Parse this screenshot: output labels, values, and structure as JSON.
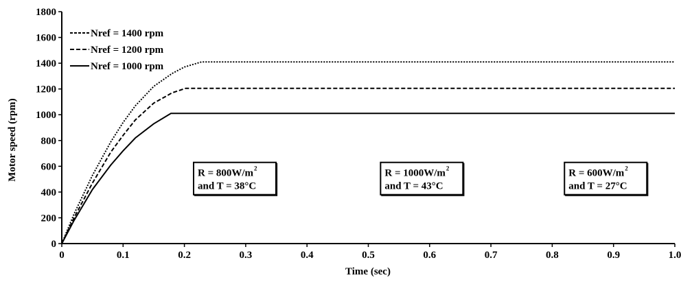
{
  "chart_data": {
    "type": "line",
    "title": "",
    "xlabel": "Time (sec)",
    "ylabel": "Motor speed (rpm)",
    "xlim": [
      0,
      1.0
    ],
    "ylim": [
      0,
      1800
    ],
    "xticks": [
      "0",
      "0.1",
      "0.2",
      "0.3",
      "0.4",
      "0.5",
      "0.6",
      "0.7",
      "0.8",
      "0.9",
      "1.0"
    ],
    "yticks": [
      "0",
      "200",
      "400",
      "600",
      "800",
      "1000",
      "1200",
      "1400",
      "1600",
      "1800"
    ],
    "grid": false,
    "legend_position": "top-left",
    "series": [
      {
        "name": "Nref = 1400 rpm",
        "style": "dotted",
        "x": [
          0,
          0.02,
          0.05,
          0.08,
          0.1,
          0.12,
          0.15,
          0.18,
          0.2,
          0.228,
          0.3,
          0.4,
          0.5,
          0.6,
          0.7,
          0.8,
          0.9,
          1.0
        ],
        "y": [
          0,
          230,
          530,
          790,
          940,
          1070,
          1220,
          1320,
          1370,
          1410,
          1410,
          1410,
          1410,
          1410,
          1410,
          1410,
          1410,
          1410
        ]
      },
      {
        "name": "Nref = 1200 rpm",
        "style": "dashed",
        "x": [
          0,
          0.02,
          0.05,
          0.08,
          0.1,
          0.12,
          0.15,
          0.18,
          0.202,
          0.3,
          0.4,
          0.5,
          0.6,
          0.7,
          0.8,
          0.9,
          1.0
        ],
        "y": [
          0,
          200,
          470,
          710,
          840,
          960,
          1090,
          1170,
          1205,
          1205,
          1205,
          1205,
          1205,
          1205,
          1205,
          1205,
          1205
        ]
      },
      {
        "name": "Nref = 1000 rpm",
        "style": "solid",
        "x": [
          0,
          0.02,
          0.05,
          0.08,
          0.1,
          0.12,
          0.15,
          0.178,
          0.2,
          0.3,
          0.4,
          0.5,
          0.6,
          0.7,
          0.8,
          0.9,
          1.0
        ],
        "y": [
          0,
          180,
          420,
          610,
          720,
          820,
          930,
          1010,
          1010,
          1010,
          1010,
          1010,
          1010,
          1010,
          1010,
          1010,
          1010
        ]
      }
    ],
    "annotations": [
      {
        "line1": "R = 800W/m",
        "sup": "2",
        "line2": "and T = 38°C",
        "x": 0.215,
        "y": 630
      },
      {
        "line1": "R = 1000W/m",
        "sup": "2",
        "line2": "and T = 43°C",
        "x": 0.52,
        "y": 630
      },
      {
        "line1": "R = 600W/m",
        "sup": "2",
        "line2": "and T = 27°C",
        "x": 0.82,
        "y": 630
      }
    ]
  }
}
